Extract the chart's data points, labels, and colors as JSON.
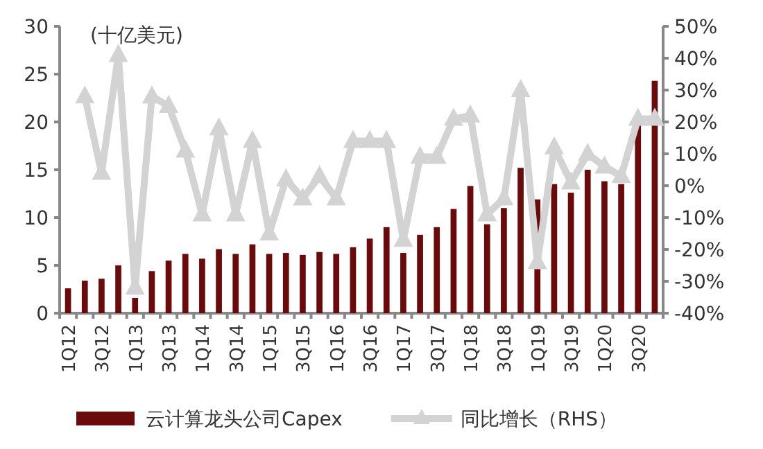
{
  "chart_data": {
    "type": "bar",
    "ylabel": "(十亿美元)",
    "categories": [
      "1Q12",
      null,
      "3Q12",
      null,
      "1Q13",
      null,
      "3Q13",
      null,
      "1Q14",
      null,
      "3Q14",
      null,
      "1Q15",
      null,
      "3Q15",
      null,
      "1Q16",
      null,
      "3Q16",
      null,
      "1Q17",
      null,
      "3Q17",
      null,
      "1Q18",
      null,
      "3Q18",
      null,
      "1Q19",
      null,
      "3Q19",
      null,
      "1Q20",
      null,
      "3Q20",
      null
    ],
    "series": [
      {
        "name": "云计算龙头公司Capex",
        "color": "#6b0a0a",
        "values": [
          2.6,
          3.4,
          3.6,
          5.0,
          1.6,
          4.4,
          5.5,
          6.2,
          5.7,
          6.7,
          6.2,
          7.2,
          6.2,
          6.3,
          6.1,
          6.4,
          6.2,
          6.9,
          7.8,
          9.0,
          6.3,
          8.2,
          9.0,
          10.9,
          13.3,
          9.3,
          11.0,
          15.2,
          11.9,
          13.5,
          12.6,
          15.0,
          13.8,
          13.5,
          19.7,
          24.3
        ]
      },
      {
        "name": "同比增长（RHS）",
        "type": "line",
        "axis": "y2",
        "color": "#d3d3d3",
        "marker": "triangle",
        "values": [
          null,
          28,
          4,
          41,
          -32,
          28,
          25,
          11,
          -9,
          18,
          -9,
          14,
          -15,
          2,
          -4,
          3,
          -4,
          14,
          14,
          14,
          -17,
          9,
          9,
          21,
          22,
          -9,
          -4,
          30,
          -24,
          12,
          1,
          10,
          6,
          3,
          21,
          21
        ]
      }
    ],
    "ylim": [
      0,
      30
    ],
    "yticks": [
      0,
      5,
      10,
      15,
      20,
      25,
      30
    ],
    "y2lim": [
      -40,
      50
    ],
    "y2ticks": [
      {
        "value": -40,
        "label": "-40%"
      },
      {
        "value": -30,
        "label": "-30%"
      },
      {
        "value": -20,
        "label": "-20%"
      },
      {
        "value": -10,
        "label": "-10%"
      },
      {
        "value": 0,
        "label": "0%"
      },
      {
        "value": 10,
        "label": "10%"
      },
      {
        "value": 20,
        "label": "20%"
      },
      {
        "value": 30,
        "label": "30%"
      },
      {
        "value": 40,
        "label": "40%"
      },
      {
        "value": 50,
        "label": "50%"
      }
    ],
    "legend": "bottom",
    "grid": false
  }
}
